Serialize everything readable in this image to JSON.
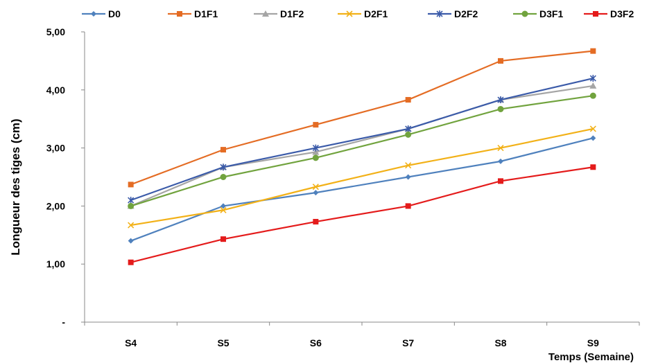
{
  "chart_data": {
    "type": "line",
    "categories": [
      "S4",
      "S5",
      "S6",
      "S7",
      "S8",
      "S9"
    ],
    "series": [
      {
        "name": "D0",
        "color": "#4F81BD",
        "marker": "diamond",
        "values": [
          1.4,
          2.0,
          2.23,
          2.5,
          2.77,
          3.17
        ]
      },
      {
        "name": "D1F1",
        "color": "#E46C24",
        "marker": "square",
        "values": [
          2.37,
          2.97,
          3.4,
          3.83,
          4.5,
          4.67
        ]
      },
      {
        "name": "D1F2",
        "color": "#A5A5A5",
        "marker": "triangle",
        "values": [
          2.0,
          2.67,
          2.93,
          3.33,
          3.83,
          4.07
        ]
      },
      {
        "name": "D2F1",
        "color": "#F2B118",
        "marker": "x",
        "values": [
          1.67,
          1.93,
          2.33,
          2.7,
          3.0,
          3.33
        ]
      },
      {
        "name": "D2F2",
        "color": "#3B5BA9",
        "marker": "star",
        "values": [
          2.1,
          2.67,
          3.0,
          3.33,
          3.83,
          4.2
        ]
      },
      {
        "name": "D3F1",
        "color": "#71A33E",
        "marker": "circle",
        "values": [
          2.0,
          2.5,
          2.83,
          3.23,
          3.67,
          3.9
        ]
      },
      {
        "name": "D3F2",
        "color": "#E41B1B",
        "marker": "square",
        "values": [
          1.03,
          1.43,
          1.73,
          2.0,
          2.43,
          2.67
        ]
      }
    ],
    "xlabel": "Temps (Semaine)",
    "ylabel": "Longueur  des tiges  (cm)",
    "ylim": [
      0,
      5
    ],
    "yticks": [
      0,
      1,
      2,
      3,
      4,
      5
    ],
    "ytick_labels": [
      "-",
      "1,00",
      "2,00",
      "3,00",
      "4,00",
      "5,00"
    ],
    "grid": false,
    "legend": "top"
  }
}
